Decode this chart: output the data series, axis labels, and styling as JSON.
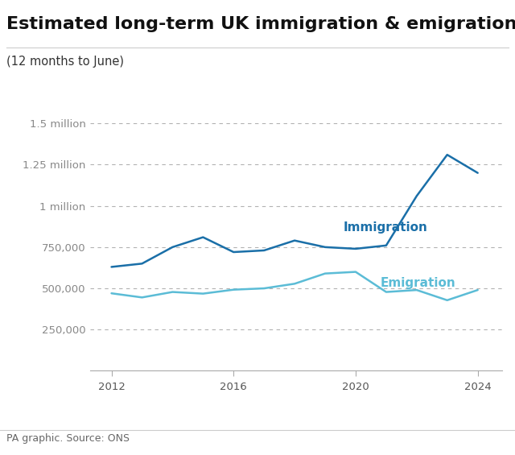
{
  "title": "Estimated long-term UK immigration & emigration",
  "subtitle": "(12 months to June)",
  "source": "PA graphic. Source: ONS",
  "immigration_x": [
    2012,
    2013,
    2014,
    2015,
    2016,
    2017,
    2018,
    2019,
    2020,
    2021,
    2022,
    2023,
    2024
  ],
  "immigration_y": [
    630000,
    650000,
    750000,
    810000,
    720000,
    730000,
    790000,
    750000,
    740000,
    760000,
    1060000,
    1310000,
    1200000
  ],
  "emigration_x": [
    2012,
    2013,
    2014,
    2015,
    2016,
    2017,
    2018,
    2019,
    2020,
    2021,
    2022,
    2023,
    2024
  ],
  "emigration_y": [
    470000,
    445000,
    478000,
    468000,
    492000,
    500000,
    528000,
    590000,
    600000,
    478000,
    490000,
    428000,
    490000
  ],
  "immigration_color": "#1a6fa8",
  "emigration_color": "#5bbcd6",
  "immigration_label": "Immigration",
  "emigration_label": "Emigration",
  "ylim": [
    0,
    1600000
  ],
  "yticks": [
    250000,
    500000,
    750000,
    1000000,
    1250000,
    1500000
  ],
  "ytick_labels": [
    "250,000",
    "500,000",
    "750,000",
    "1 million",
    "1.25 million",
    "1.5 million"
  ],
  "xticks": [
    2012,
    2016,
    2020,
    2024
  ],
  "background_color": "#ffffff",
  "grid_color": "#aaaaaa",
  "title_fontsize": 16,
  "subtitle_fontsize": 10.5,
  "label_fontsize": 11,
  "tick_fontsize": 9.5,
  "source_fontsize": 9
}
